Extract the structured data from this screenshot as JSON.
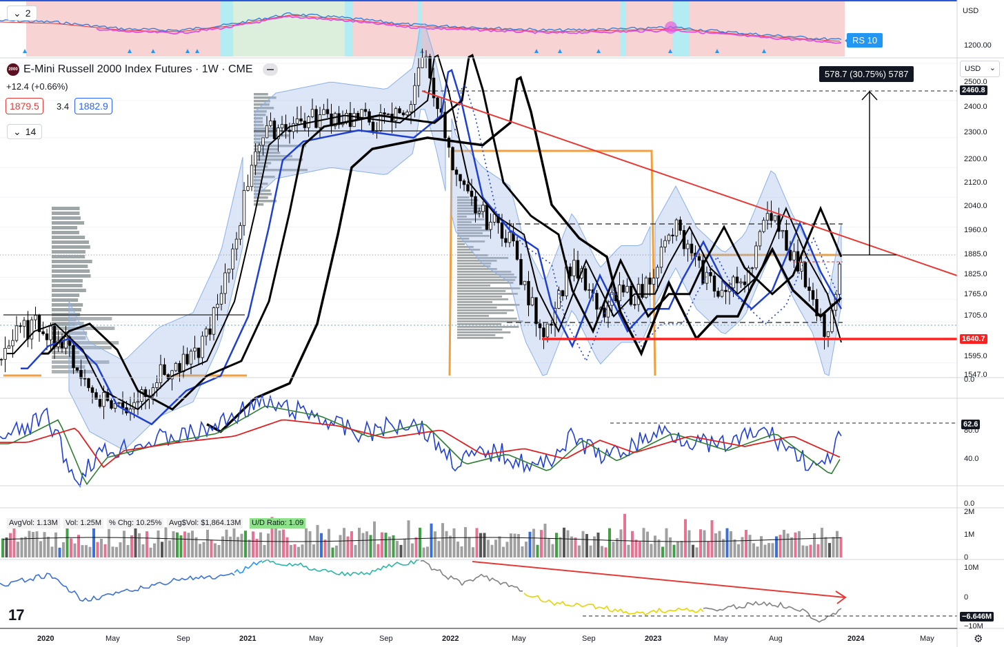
{
  "header": {
    "symbol_icon": "2000",
    "title": "E-Mini Russell 2000 Index Futures · 1W · CME",
    "change": "+12.4 (+0.66%)",
    "bid": "1879.5",
    "spread": "3.4",
    "ask": "1882.9",
    "top_pane_collapse": "2",
    "indicators_collapse": "14"
  },
  "currency": {
    "top": "USD",
    "main": "USD"
  },
  "rs_pane": {
    "label": "RS 10",
    "axis_value": "1200.00"
  },
  "measure_label": "578.7 (30.75%) 5787",
  "price_axis": {
    "ticks": [
      "2500.0",
      "2400.0",
      "2300.0",
      "2200.0",
      "2120.0",
      "2040.0",
      "1960.0",
      "1885.0",
      "1825.0",
      "1765.0",
      "1705.0",
      "1595.0",
      "1547.0"
    ],
    "marker_high": "2460.8",
    "marker_low": "1640.7"
  },
  "rsi_pane": {
    "top_value": "0.0",
    "ticks": [
      "80.0",
      "40.0"
    ],
    "marker": "62.6"
  },
  "volume_pane": {
    "top_value": "0.0",
    "ticks": [
      "2M",
      "1M",
      "0"
    ],
    "stats": {
      "avg_vol": "AvgVol: 1.13M",
      "vol": "Vol: 1.25M",
      "pct_chg": "% Chg: 10.25%",
      "avg_dollar_vol": "Avg$Vol: $1,864.13M",
      "ud_ratio": "U/D Ratio: 1.09"
    }
  },
  "obv_pane": {
    "ticks": [
      "10M",
      "0",
      "−10M"
    ],
    "marker": "−6.646M"
  },
  "time_axis": {
    "labels": [
      "2020",
      "May",
      "Sep",
      "2021",
      "May",
      "Sep",
      "2022",
      "May",
      "Sep",
      "2023",
      "May",
      "Aug",
      "2024",
      "May"
    ]
  },
  "colors": {
    "up_bar": "#000000",
    "trendline": "#e53935",
    "support": "#ff1f1f",
    "ema_blue": "#1e3fd0",
    "band_fill": "#9fb6e6",
    "volume_profile": "#9fa6a8",
    "orange_box": "#f0a040",
    "rsi_blue": "#1f3fd6",
    "rsi_green": "#2e7d32",
    "rsi_red": "#e02020",
    "vol_red": "#e57391",
    "vol_green": "#43a047",
    "vol_gray": "#a0a0a0",
    "obv_gray": "#808080",
    "obv_yellow": "#e5d400",
    "obv_teal": "#28b5a5",
    "rs_pink": "#f8d3d3",
    "rs_green": "#dcefdc",
    "rs_cyan": "#b3ecf2",
    "rs_line": "#e050e0"
  },
  "chart_data": [
    {
      "type": "line",
      "name": "price",
      "x": [
        "2020-01",
        "2020-05",
        "2020-09",
        "2021-01",
        "2021-05",
        "2021-09",
        "2021-11",
        "2022-01",
        "2022-05",
        "2022-06",
        "2022-09",
        "2023-01",
        "2023-05",
        "2023-08",
        "2023-10",
        "2023-12"
      ],
      "values": [
        1660,
        1300,
        1550,
        2100,
        2250,
        2230,
        2460,
        2150,
        1900,
        1700,
        1725,
        1880,
        1760,
        2010,
        1650,
        1880
      ],
      "ylim": [
        1547,
        2500
      ],
      "annotations": [
        "578.7 (30.75%) 5787",
        "2460.8",
        "1640.7"
      ]
    },
    {
      "type": "line",
      "name": "rsi",
      "ylim": [
        0,
        100
      ],
      "ticks": [
        80,
        40
      ],
      "annotations": [
        "62.6"
      ]
    },
    {
      "type": "bar",
      "name": "volume",
      "ylim": [
        0,
        2000000
      ],
      "ticks": [
        "2M",
        "1M",
        "0"
      ]
    },
    {
      "type": "line",
      "name": "obv",
      "ticks": [
        "10M",
        "0",
        "−10M"
      ],
      "annotations": [
        "−6.646M"
      ]
    }
  ]
}
